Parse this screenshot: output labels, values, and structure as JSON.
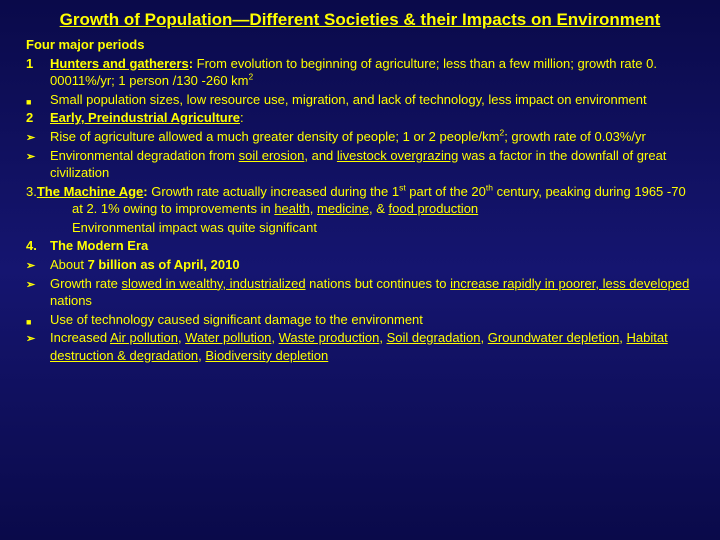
{
  "title": "Growth of Population—Different Societies & their Impacts on Environment",
  "heading": "Four major periods",
  "items": [
    {
      "marker": "1",
      "type": "num",
      "html": "<span class='b u'>Hunters and gatherers</span><span class='b'>:</span> From evolution to beginning of agriculture; less than a few million; growth rate  0. 00011%/yr; 1 person /130 -260 km<sup>2</sup>"
    },
    {
      "marker": "",
      "type": "sq",
      "html": "Small population sizes, low resource use, migration,  and lack of technology, less impact on environment"
    },
    {
      "marker": "2",
      "type": "num",
      "html": "<span class='b u'>Early, Preindustrial  Agriculture</span>:"
    },
    {
      "marker": "",
      "type": "chev",
      "html": "Rise of agriculture allowed a much greater density of people; 1 or 2 people/km<sup>2</sup>; growth rate of 0.03%/yr"
    },
    {
      "marker": "",
      "type": "chev",
      "html": "Environmental degradation from <span class='u'>soil erosion</span>, and <span class='u'>livestock overgrazing</span> was a factor in the downfall of great civilization"
    },
    {
      "marker": "",
      "type": "plain",
      "html": " 3.<span class='b u'>The Machine Age</span><span class='b'>:</span>  Growth rate actually increased during the 1<sup>st</sup> part of the 20<sup>th</sup> century, peaking during 1965 -70 at 2. 1% owing to improvements in <span class='u'>health</span>, <span class='u'>medicine</span>, & <span class='u'>food production</span>",
      "indent": true
    },
    {
      "marker": "",
      "type": "plain",
      "html": "Environmental impact was quite significant",
      "indent2": true
    },
    {
      "marker": "4.",
      "type": "num",
      "html": "<span class='b'>The Modern Era</span>"
    },
    {
      "marker": "",
      "type": "chev",
      "html": "About <span class='b'>7 billion as of April, 2010</span>"
    },
    {
      "marker": "",
      "type": "chev",
      "html": "Growth rate <span class='u'>slowed in wealthy, industrialized</span> nations but continues to <span class='u'>increase rapidly in poorer, less developed</span> nations"
    },
    {
      "marker": "",
      "type": "sq",
      "html": "Use of technology caused significant damage to the environment"
    },
    {
      "marker": "",
      "type": "chev",
      "html": "Increased <span class='u'>Air pollution</span>, <span class='u'>Water pollution</span>, <span class='u'>Waste production</span>, <span class='u'>Soil degradation</span>, <span class='u'>Groundwater depletion</span>, <span class='u'>Habitat destruction & degradation</span>, <span class='u'>Biodiversity depletion</span>"
    }
  ]
}
